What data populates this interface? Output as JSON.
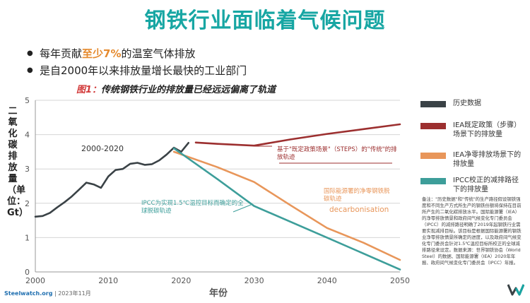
{
  "title": "钢铁行业面临着气候问题",
  "bullets": [
    {
      "pre": "每年贡献",
      "hl": "至少7%",
      "post": "的温室气体排放"
    },
    {
      "pre": "是自2000年以来排放量增长最快的工业部门",
      "hl": "",
      "post": ""
    }
  ],
  "subtitle_pre": "图1：",
  "subtitle_main": "传统钢铁行业的排放量已经远远偏离了轨道",
  "annotations": {
    "period": "2000-2020",
    "steps": "基于\"既定政策场景\"（STEPS）的\"传统\"的排放轨迹",
    "nze": "国际能源署的净零钢铁脱碳轨迹",
    "decarb": "decarbonisation",
    "ipcc": "IPCC为实现1.5℃温控目标而确定的全球脱碳轨迹"
  },
  "legend": [
    {
      "label": "历史数据",
      "color": "#3a4246"
    },
    {
      "label": "IEA既定政策（步骤）场景下的排放量",
      "color": "#9c2f2f"
    },
    {
      "label": "IEA净零排放场景下的排放量",
      "color": "#e8965a"
    },
    {
      "label": "IPCC校正的减排路径下的排放量",
      "color": "#3d9e9a"
    }
  ],
  "note": "备注：\"历史数据\"和\"传统\"的生产路径假设钢铁强度和不同生产方式所生产的钢铁份额将保持在目前所产生的二氧化碳排放水平。国际能源署（IEA）的净零排放情景和政府间气候变化专门委员会（IPCC）的减排路径明确了2019年起钢铁行业需要实现减排目标。该目标是根据国际能源署的钢铁业净零排放情景所确定的进度，以及政府间气候变化专门委员会针对1.5℃温控目标所校正的全球减排路径来设定。数据来源：世界钢铁协会（World Steel）的数据、国际能源署（IEA）2020年年报、政府间气候变化专门委员会（IPCC）年报。",
  "footer_brand": "Steelwatch.org",
  "footer_date": " | 2023年11月",
  "chart_data": {
    "type": "line",
    "title": "传统钢铁行业的排放量已经远远偏离了轨道",
    "xlabel": "年份",
    "ylabel": "二氧化碳排放量（单位：Gt）",
    "xlim": [
      2000,
      2050
    ],
    "ylim": [
      0,
      5
    ],
    "xticks": [
      2000,
      2010,
      2020,
      2030,
      2040,
      2050
    ],
    "yticks": [
      0,
      1,
      2,
      3,
      4,
      5
    ],
    "grid": true,
    "legend_position": "right",
    "series": [
      {
        "name": "历史数据",
        "color": "#3a4246",
        "x": [
          2000,
          2001,
          2002,
          2003,
          2004,
          2005,
          2006,
          2007,
          2008,
          2009,
          2010,
          2011,
          2012,
          2013,
          2014,
          2015,
          2016,
          2017,
          2018,
          2019,
          2020,
          2021
        ],
        "y": [
          1.61,
          1.63,
          1.72,
          1.88,
          2.03,
          2.2,
          2.4,
          2.6,
          2.55,
          2.45,
          2.78,
          2.97,
          3.0,
          3.15,
          3.18,
          3.12,
          3.14,
          3.25,
          3.42,
          3.62,
          3.5,
          3.76
        ]
      },
      {
        "name": "IEA既定政策（步骤）场景下的排放量",
        "color": "#9c2f2f",
        "x": [
          2022,
          2025,
          2030,
          2035,
          2040,
          2045,
          2050
        ],
        "y": [
          3.77,
          3.73,
          3.68,
          3.86,
          4.02,
          4.16,
          4.3
        ]
      },
      {
        "name": "IEA净零排放场景下的排放量",
        "color": "#e8965a",
        "x": [
          2019,
          2025,
          2030,
          2035,
          2040,
          2045,
          2050
        ],
        "y": [
          3.5,
          3.05,
          2.62,
          1.94,
          1.28,
          0.85,
          0.35
        ]
      },
      {
        "name": "IPCC校正的减排路径下的排放量",
        "color": "#3d9e9a",
        "x": [
          2019,
          2025,
          2030,
          2040,
          2050
        ],
        "y": [
          3.6,
          2.7,
          1.92,
          1.0,
          0.07
        ]
      }
    ]
  }
}
